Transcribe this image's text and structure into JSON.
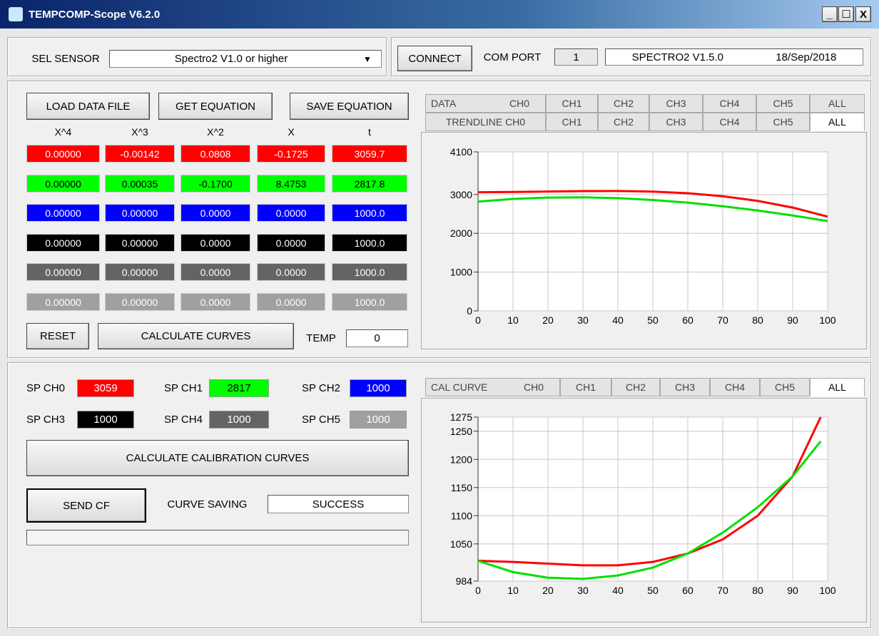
{
  "window": {
    "title": "TEMPCOMP-Scope V6.2.0"
  },
  "sensor": {
    "label": "SEL SENSOR",
    "value": "Spectro2 V1.0 or higher"
  },
  "connection": {
    "button": "CONNECT",
    "com_port_label": "COM PORT",
    "com_port": "1",
    "firmware": "SPECTRO2 V1.5.0",
    "date": "18/Sep/2018"
  },
  "equation": {
    "buttons": [
      "LOAD DATA FILE",
      "GET EQUATION",
      "SAVE EQUATION"
    ],
    "headers": [
      "X^4",
      "X^3",
      "X^2",
      "X",
      "t"
    ],
    "rows": [
      {
        "color": "#ff0000",
        "text_color": "#ffffff",
        "cells": [
          "0.00000",
          "-0.00142",
          "0.0808",
          "-0.1725",
          "3059.7"
        ]
      },
      {
        "color": "#00ff00",
        "text_color": "#000000",
        "cells": [
          "0.00000",
          "0.00035",
          "-0.1700",
          "8.4753",
          "2817.8"
        ]
      },
      {
        "color": "#0000ff",
        "text_color": "#ffffff",
        "cells": [
          "0.00000",
          "0.00000",
          "0.0000",
          "0.0000",
          "1000.0"
        ]
      },
      {
        "color": "#000000",
        "text_color": "#ffffff",
        "cells": [
          "0.00000",
          "0.00000",
          "0.0000",
          "0.0000",
          "1000.0"
        ]
      },
      {
        "color": "#646464",
        "text_color": "#ffffff",
        "cells": [
          "0.00000",
          "0.00000",
          "0.0000",
          "0.0000",
          "1000.0"
        ]
      },
      {
        "color": "#a0a0a0",
        "text_color": "#ffffff",
        "cells": [
          "0.00000",
          "0.00000",
          "0.0000",
          "0.0000",
          "1000.0"
        ]
      }
    ],
    "reset": "RESET",
    "calculate": "CALCULATE CURVES",
    "temp_label": "TEMP",
    "temp": "0"
  },
  "data_tabs": {
    "label": "DATA",
    "tabs": [
      "CH0",
      "CH1",
      "CH2",
      "CH3",
      "CH4",
      "CH5",
      "ALL"
    ]
  },
  "trend_tabs": {
    "tabs": [
      "TRENDLINE CH0",
      "CH1",
      "CH2",
      "CH3",
      "CH4",
      "CH5",
      "ALL"
    ]
  },
  "trend_chart": {
    "type": "line",
    "x": [
      0,
      10,
      20,
      30,
      40,
      50,
      60,
      70,
      80,
      90,
      100
    ],
    "xlim": [
      0,
      100
    ],
    "xticks": [
      0,
      10,
      20,
      30,
      40,
      50,
      60,
      70,
      80,
      90,
      100
    ],
    "ylim": [
      0,
      4100
    ],
    "yticks": [
      0,
      1000,
      2000,
      3000,
      4100
    ],
    "grid": true,
    "series": [
      {
        "color": "#ff0000",
        "values": [
          3060,
          3065,
          3077,
          3089,
          3091,
          3075,
          3034,
          2956,
          2836,
          2664,
          2430
        ]
      },
      {
        "color": "#00e000",
        "values": [
          2818,
          2886,
          2922,
          2929,
          2907,
          2860,
          2790,
          2698,
          2587,
          2459,
          2315
        ]
      }
    ]
  },
  "setpoints": [
    {
      "label": "SP CH0",
      "value": "3059",
      "color": "#ff0000",
      "text_color": "#ffffff"
    },
    {
      "label": "SP CH1",
      "value": "2817",
      "color": "#00ff00",
      "text_color": "#000000"
    },
    {
      "label": "SP CH2",
      "value": "1000",
      "color": "#0000ff",
      "text_color": "#ffffff"
    },
    {
      "label": "SP CH3",
      "value": "1000",
      "color": "#000000",
      "text_color": "#ffffff"
    },
    {
      "label": "SP CH4",
      "value": "1000",
      "color": "#646464",
      "text_color": "#ffffff"
    },
    {
      "label": "SP CH5",
      "value": "1000",
      "color": "#a0a0a0",
      "text_color": "#ffffff"
    }
  ],
  "calibration": {
    "button": "CALCULATE CALIBRATION CURVES",
    "send": "SEND CF",
    "saving_label": "CURVE SAVING",
    "saving_status": "SUCCESS"
  },
  "cal_tabs": {
    "label": "CAL CURVE",
    "tabs": [
      "CH0",
      "CH1",
      "CH2",
      "CH3",
      "CH4",
      "CH5",
      "ALL"
    ]
  },
  "cal_chart": {
    "type": "line",
    "x": [
      0,
      10,
      20,
      30,
      40,
      50,
      60,
      70,
      80,
      90,
      98
    ],
    "xlim": [
      0,
      100
    ],
    "xticks": [
      0,
      10,
      20,
      30,
      40,
      50,
      60,
      70,
      80,
      90,
      100
    ],
    "ylim": [
      984,
      1275
    ],
    "yticks": [
      984,
      1050,
      1100,
      1150,
      1200,
      1250,
      1275
    ],
    "grid": true,
    "series": [
      {
        "color": "#ff0000",
        "values": [
          1020,
          1018,
          1015,
          1012,
          1012,
          1018,
          1033,
          1058,
          1100,
          1170,
          1275
        ]
      },
      {
        "color": "#00e000",
        "values": [
          1020,
          1000,
          990,
          988,
          994,
          1008,
          1033,
          1070,
          1115,
          1170,
          1232
        ]
      }
    ]
  }
}
